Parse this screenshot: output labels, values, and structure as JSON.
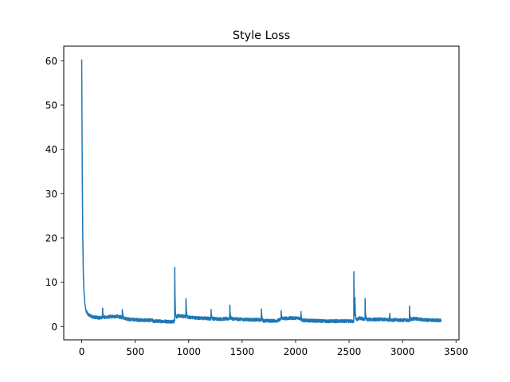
{
  "chart_data": {
    "type": "line",
    "title": "Style Loss",
    "xlabel": "",
    "ylabel": "",
    "xlim": [
      -168,
      3528
    ],
    "ylim": [
      -3.0,
      63.3
    ],
    "xticks": [
      0,
      500,
      1000,
      1500,
      2000,
      2500,
      3000,
      3500
    ],
    "xtick_labels": [
      "0",
      "500",
      "1000",
      "1500",
      "2000",
      "2500",
      "3000",
      "3500"
    ],
    "yticks": [
      0,
      10,
      20,
      30,
      40,
      50,
      60
    ],
    "ytick_labels": [
      "0",
      "10",
      "20",
      "30",
      "40",
      "50",
      "60"
    ],
    "grid": false,
    "legend": "none",
    "line_color": "#1f77b4",
    "x_max": 3360,
    "base_shape": [
      [
        0,
        60.3
      ],
      [
        2,
        50
      ],
      [
        5,
        35
      ],
      [
        10,
        20
      ],
      [
        15,
        12
      ],
      [
        22,
        7.5
      ],
      [
        30,
        5
      ],
      [
        40,
        3.5
      ],
      [
        60,
        2.7
      ],
      [
        90,
        2.3
      ],
      [
        120,
        2.1
      ],
      [
        160,
        2.0
      ],
      [
        190,
        2.0
      ],
      [
        260,
        2.2
      ],
      [
        330,
        2.3
      ],
      [
        400,
        1.9
      ],
      [
        450,
        1.6
      ],
      [
        520,
        1.5
      ],
      [
        600,
        1.4
      ],
      [
        660,
        1.4
      ],
      [
        670,
        1.2
      ],
      [
        720,
        1.2
      ],
      [
        860,
        1.1
      ],
      [
        900,
        2.5
      ],
      [
        1000,
        2.1
      ],
      [
        1100,
        1.9
      ],
      [
        1200,
        1.8
      ],
      [
        1300,
        1.7
      ],
      [
        1390,
        1.8
      ],
      [
        1500,
        1.6
      ],
      [
        1680,
        1.5
      ],
      [
        1700,
        1.3
      ],
      [
        1830,
        1.3
      ],
      [
        1870,
        1.8
      ],
      [
        1950,
        1.9
      ],
      [
        2040,
        1.9
      ],
      [
        2060,
        1.4
      ],
      [
        2300,
        1.2
      ],
      [
        2540,
        1.2
      ],
      [
        2600,
        1.9
      ],
      [
        2650,
        1.6
      ],
      [
        2800,
        1.6
      ],
      [
        2900,
        1.5
      ],
      [
        3060,
        1.4
      ],
      [
        3100,
        1.8
      ],
      [
        3200,
        1.5
      ],
      [
        3300,
        1.4
      ],
      [
        3360,
        1.4
      ]
    ],
    "spikes": [
      {
        "x": 195,
        "peak": 4.4
      },
      {
        "x": 380,
        "peak": 3.9
      },
      {
        "x": 870,
        "peak": 13.3
      },
      {
        "x": 975,
        "peak": 6.5
      },
      {
        "x": 1210,
        "peak": 4.0
      },
      {
        "x": 1385,
        "peak": 5.1
      },
      {
        "x": 1680,
        "peak": 4.2
      },
      {
        "x": 1865,
        "peak": 3.6
      },
      {
        "x": 2050,
        "peak": 3.3
      },
      {
        "x": 2545,
        "peak": 12.3
      },
      {
        "x": 2555,
        "peak": 5.8
      },
      {
        "x": 2650,
        "peak": 6.0
      },
      {
        "x": 2880,
        "peak": 3.0
      },
      {
        "x": 3065,
        "peak": 4.3
      }
    ],
    "noise_amplitude": 0.35
  }
}
